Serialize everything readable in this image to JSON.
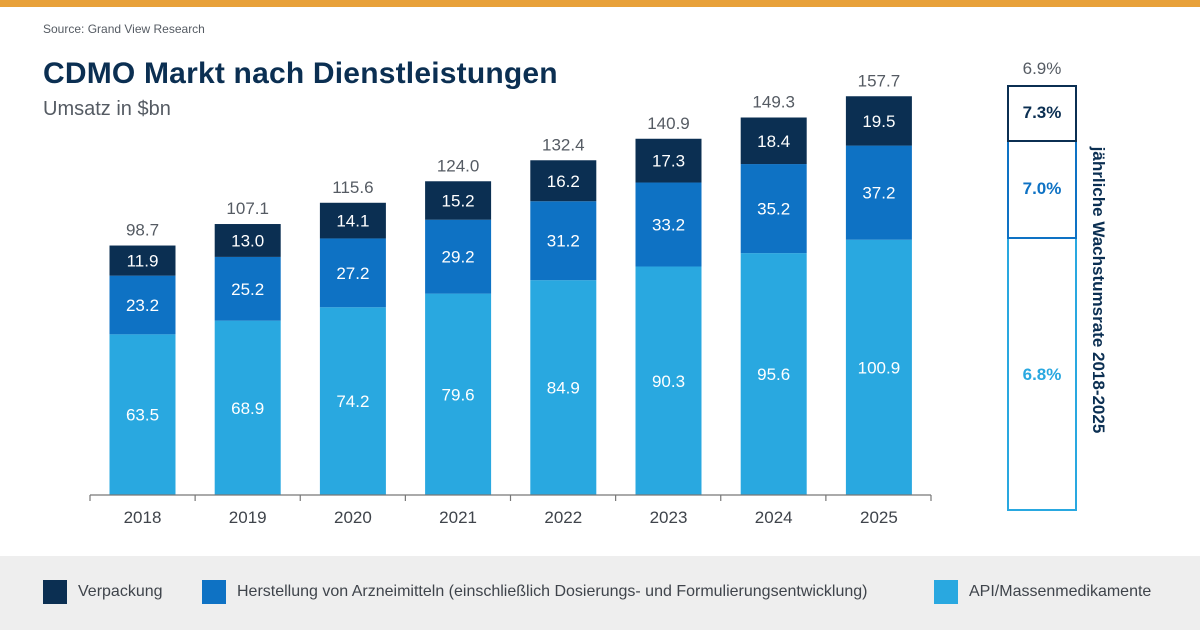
{
  "source": "Source: Grand View Research",
  "title": "CDMO Markt nach Dienstleistungen",
  "subtitle": "Umsatz in $bn",
  "colors": {
    "accent_bar": "#e8a13a",
    "packaging": "#0b2f52",
    "manufacturing": "#0e72c4",
    "api": "#29a8e0"
  },
  "chart_data": {
    "type": "bar",
    "stacked": true,
    "categories": [
      "2018",
      "2019",
      "2020",
      "2021",
      "2022",
      "2023",
      "2024",
      "2025"
    ],
    "series": [
      {
        "name": "API/Massenmedikamente",
        "values": [
          63.5,
          68.9,
          74.2,
          79.6,
          84.9,
          90.3,
          95.6,
          100.9
        ]
      },
      {
        "name": "Herstellung von Arzneimitteln (einschließlich Dosierungs- und Formulierungsentwicklung)",
        "values": [
          23.2,
          25.2,
          27.2,
          29.2,
          31.2,
          33.2,
          35.2,
          37.2
        ]
      },
      {
        "name": "Verpackung",
        "values": [
          11.9,
          13.0,
          14.1,
          15.2,
          16.2,
          17.3,
          18.4,
          19.5
        ]
      }
    ],
    "totals": [
      "98.7",
      "107.1",
      "115.6",
      "124.0",
      "132.4",
      "140.9",
      "149.3",
      "157.7"
    ],
    "value_labels": [
      [
        "63.5",
        "68.9",
        "74.2",
        "79.6",
        "84.9",
        "90.3",
        "95.6",
        "100.9"
      ],
      [
        "23.2",
        "25.2",
        "27.2",
        "29.2",
        "31.2",
        "33.2",
        "35.2",
        "37.2"
      ],
      [
        "11.9",
        "13.0",
        "14.1",
        "15.2",
        "16.2",
        "17.3",
        "18.4",
        "19.5"
      ]
    ],
    "ylim": [
      0,
      160
    ],
    "grid": false,
    "legend_position": "bottom"
  },
  "cagr": {
    "title": "jährliche Wachstumsrate 2018-2025",
    "total": "6.9%",
    "segments": [
      {
        "label": "7.3%",
        "series": "Verpackung"
      },
      {
        "label": "7.0%",
        "series": "Herstellung von Arzneimitteln (einschließlich Dosierungs- und Formulierungsentwicklung)"
      },
      {
        "label": "6.8%",
        "series": "API/Massenmedikamente"
      }
    ]
  },
  "legend": [
    {
      "label": "Verpackung",
      "color": "#0b2f52"
    },
    {
      "label": "Herstellung von Arzneimitteln (einschließlich Dosierungs- und Formulierungsentwicklung)",
      "color": "#0e72c4"
    },
    {
      "label": "API/Massenmedikamente",
      "color": "#29a8e0"
    }
  ]
}
